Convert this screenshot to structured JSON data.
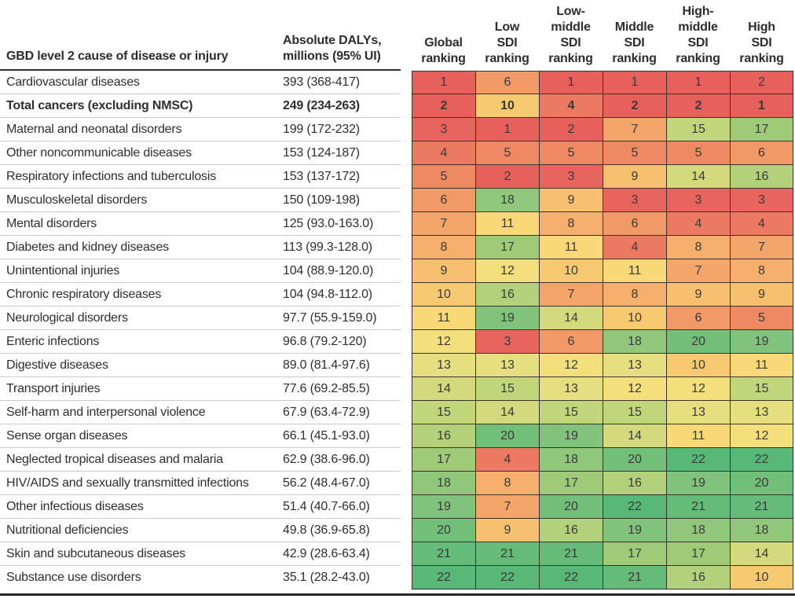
{
  "table": {
    "cause_header": "GBD level 2 cause of disease or injury",
    "dalys_header": "Absolute DALYs,\nmillions (95% UI)"
  },
  "rank_colors": [
    "#e6605c",
    "#e6605c",
    "#e7655e",
    "#eb7a61",
    "#ee8964",
    "#f19967",
    "#f3a56a",
    "#f5b06d",
    "#f6c06f",
    "#f7ca72",
    "#f8d877",
    "#f3e07c",
    "#e5df80",
    "#d3da7d",
    "#c1d57b",
    "#b3d17a",
    "#9fcb78",
    "#90c77b",
    "#81c37c",
    "#72bf7a",
    "#65bb78",
    "#58b877"
  ],
  "chart_data": {
    "type": "heatmap",
    "title": "",
    "value_meaning": "ranking of GBD level 2 causes by absolute DALYs (1 = highest burden, 22 = lowest)",
    "scale": {
      "min_rank": 1,
      "max_rank": 22,
      "low_color": "#e6605c",
      "mid_color": "#f3e07c",
      "high_color": "#58b877"
    },
    "column_headers_multiline": [
      "Global\nranking",
      "Low\nSDI\nranking",
      "Low-\nmiddle\nSDI\nranking",
      "Middle\nSDI\nranking",
      "High-\nmiddle\nSDI\nranking",
      "High\nSDI\nranking"
    ],
    "columns": [
      "Global ranking",
      "Low SDI ranking",
      "Low-middle SDI ranking",
      "Middle SDI ranking",
      "High-middle SDI ranking",
      "High SDI ranking"
    ],
    "rows": [
      {
        "cause": "Cardiovascular diseases",
        "dalys": "393 (368-417)",
        "ranks": [
          1,
          6,
          1,
          1,
          1,
          2
        ],
        "bold": false
      },
      {
        "cause": "Total cancers (excluding NMSC)",
        "dalys": "249 (234-263)",
        "ranks": [
          2,
          10,
          4,
          2,
          2,
          1
        ],
        "bold": true
      },
      {
        "cause": "Maternal and neonatal disorders",
        "dalys": "199 (172-232)",
        "ranks": [
          3,
          1,
          2,
          7,
          15,
          17
        ],
        "bold": false
      },
      {
        "cause": "Other noncommunicable diseases",
        "dalys": "153 (124-187)",
        "ranks": [
          4,
          5,
          5,
          5,
          5,
          6
        ],
        "bold": false
      },
      {
        "cause": "Respiratory infections and tuberculosis",
        "dalys": "153 (137-172)",
        "ranks": [
          5,
          2,
          3,
          9,
          14,
          16
        ],
        "bold": false
      },
      {
        "cause": "Musculoskeletal disorders",
        "dalys": "150 (109-198)",
        "ranks": [
          6,
          18,
          9,
          3,
          3,
          3
        ],
        "bold": false
      },
      {
        "cause": "Mental disorders",
        "dalys": "125 (93.0-163.0)",
        "ranks": [
          7,
          11,
          8,
          6,
          4,
          4
        ],
        "bold": false
      },
      {
        "cause": "Diabetes and kidney diseases",
        "dalys": "113 (99.3-128.0)",
        "ranks": [
          8,
          17,
          11,
          4,
          8,
          7
        ],
        "bold": false
      },
      {
        "cause": "Unintentional injuries",
        "dalys": "104 (88.9-120.0)",
        "ranks": [
          9,
          12,
          10,
          11,
          7,
          8
        ],
        "bold": false
      },
      {
        "cause": "Chronic respiratory diseases",
        "dalys": "104 (94.8-112.0)",
        "ranks": [
          10,
          16,
          7,
          8,
          9,
          9
        ],
        "bold": false
      },
      {
        "cause": "Neurological disorders",
        "dalys": "97.7 (55.9-159.0)",
        "ranks": [
          11,
          19,
          14,
          10,
          6,
          5
        ],
        "bold": false
      },
      {
        "cause": "Enteric infections",
        "dalys": "96.8 (79.2-120)",
        "ranks": [
          12,
          3,
          6,
          18,
          20,
          19
        ],
        "bold": false
      },
      {
        "cause": "Digestive diseases",
        "dalys": "89.0 (81.4-97.6)",
        "ranks": [
          13,
          13,
          12,
          13,
          10,
          11
        ],
        "bold": false
      },
      {
        "cause": "Transport injuries",
        "dalys": "77.6 (69.2-85.5)",
        "ranks": [
          14,
          15,
          13,
          12,
          12,
          15
        ],
        "bold": false
      },
      {
        "cause": "Self-harm and interpersonal violence",
        "dalys": "67.9 (63.4-72.9)",
        "ranks": [
          15,
          14,
          15,
          15,
          13,
          13
        ],
        "bold": false
      },
      {
        "cause": "Sense organ diseases",
        "dalys": "66.1 (45.1-93.0)",
        "ranks": [
          16,
          20,
          19,
          14,
          11,
          12
        ],
        "bold": false
      },
      {
        "cause": "Neglected tropical diseases and malaria",
        "dalys": "62.9 (38.6-96.0)",
        "ranks": [
          17,
          4,
          18,
          20,
          22,
          22
        ],
        "bold": false
      },
      {
        "cause": "HIV/AIDS and sexually transmitted infections",
        "dalys": "56.2 (48.4-67.0)",
        "ranks": [
          18,
          8,
          17,
          16,
          19,
          20
        ],
        "bold": false
      },
      {
        "cause": "Other infectious diseases",
        "dalys": "51.4 (40.7-66.0)",
        "ranks": [
          19,
          7,
          20,
          22,
          21,
          21
        ],
        "bold": false
      },
      {
        "cause": "Nutritional deficiencies",
        "dalys": "49.8 (36.9-65.8)",
        "ranks": [
          20,
          9,
          16,
          19,
          18,
          18
        ],
        "bold": false
      },
      {
        "cause": "Skin and subcutaneous diseases",
        "dalys": "42.9 (28.6-63.4)",
        "ranks": [
          21,
          21,
          21,
          17,
          17,
          14
        ],
        "bold": false
      },
      {
        "cause": "Substance use disorders",
        "dalys": "35.1 (28.2-43.0)",
        "ranks": [
          22,
          22,
          22,
          21,
          16,
          10
        ],
        "bold": false
      }
    ]
  }
}
